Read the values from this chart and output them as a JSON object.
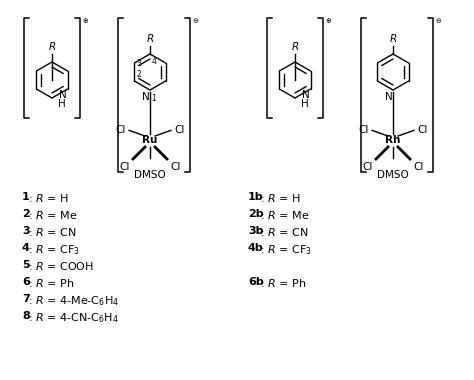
{
  "background_color": "#ffffff",
  "fig_width": 4.74,
  "fig_height": 3.8,
  "dpi": 100,
  "left_labels": [
    {
      "bold": "1",
      "rest": ": $R$ = H"
    },
    {
      "bold": "2",
      "rest": ": $R$ = Me"
    },
    {
      "bold": "3",
      "rest": ": $R$ = CN"
    },
    {
      "bold": "4",
      "rest": ": $R$ = CF$_3$"
    },
    {
      "bold": "5",
      "rest": ": $R$ = COOH"
    },
    {
      "bold": "6",
      "rest": ": $R$ = Ph"
    },
    {
      "bold": "7",
      "rest": ": $R$ = 4-Me-C$_6$H$_4$"
    },
    {
      "bold": "8",
      "rest": ": $R$ = 4-CN-C$_6$H$_4$"
    }
  ],
  "right_labels": [
    {
      "bold": "1b",
      "rest": ": $R$ = H",
      "row": 0
    },
    {
      "bold": "2b",
      "rest": ": $R$ = Me",
      "row": 1
    },
    {
      "bold": "3b",
      "rest": ": $R$ = CN",
      "row": 2
    },
    {
      "bold": "4b",
      "rest": ": $R$ = CF$_3$",
      "row": 3
    },
    {
      "bold": "6b",
      "rest": ": $R$ = Ph",
      "row": 5
    }
  ]
}
